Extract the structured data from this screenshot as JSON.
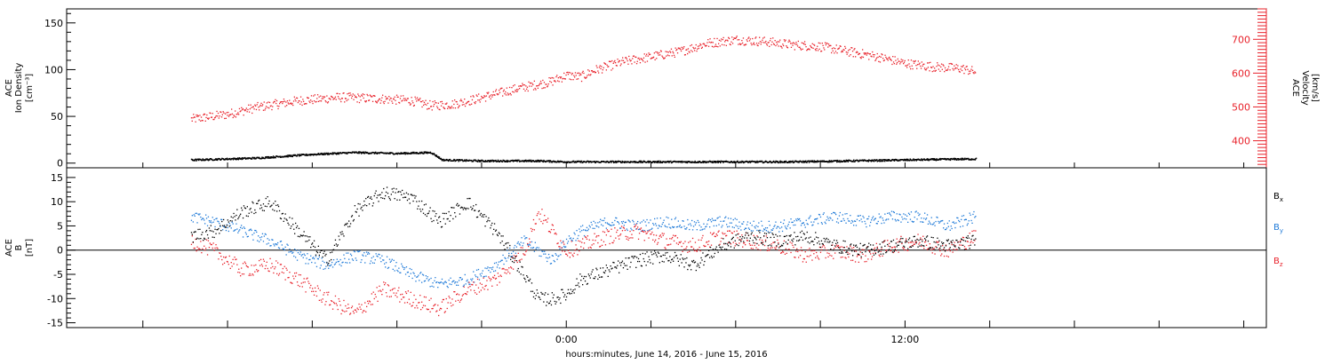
{
  "chart_data": [
    {
      "type": "scatter",
      "panel": "top",
      "ylabel_left": [
        "ACE",
        "Ion Density",
        "[cm⁻³]"
      ],
      "ylabel_right": [
        "ACE",
        "Velocity",
        "[km/s]"
      ],
      "yticks_left": [
        0,
        50,
        100,
        150
      ],
      "ylim_left": [
        -5,
        165
      ],
      "yticks_right": [
        400,
        500,
        600,
        700
      ],
      "ylim_right": [
        320,
        790
      ],
      "series": [
        {
          "name": "Velocity",
          "axis": "right",
          "color": "#e8212a",
          "points": [
            [
              -13.3,
              465
            ],
            [
              -12.0,
              480
            ],
            [
              -11.0,
              500
            ],
            [
              -9.5,
              520
            ],
            [
              -8.0,
              530
            ],
            [
              -6.5,
              525
            ],
            [
              -5.5,
              520
            ],
            [
              -4.8,
              505
            ],
            [
              -4.0,
              510
            ],
            [
              -3.2,
              525
            ],
            [
              -2.5,
              540
            ],
            [
              -1.8,
              555
            ],
            [
              -1.2,
              565
            ],
            [
              -0.6,
              575
            ],
            [
              0,
              595
            ],
            [
              0.5,
              590
            ],
            [
              1.0,
              610
            ],
            [
              2.0,
              635
            ],
            [
              3.0,
              650
            ],
            [
              4.0,
              665
            ],
            [
              5.0,
              690
            ],
            [
              6.0,
              700
            ],
            [
              7.0,
              695
            ],
            [
              8.0,
              685
            ],
            [
              9.0,
              680
            ],
            [
              10.0,
              665
            ],
            [
              11.0,
              650
            ],
            [
              12.0,
              630
            ],
            [
              13.0,
              620
            ],
            [
              14.0,
              615
            ],
            [
              14.5,
              605
            ]
          ]
        },
        {
          "name": "Ion Density",
          "axis": "left",
          "color": "#000000",
          "points": [
            [
              -13.3,
              4
            ],
            [
              -11.0,
              6
            ],
            [
              -9.0,
              10
            ],
            [
              -7.5,
              12
            ],
            [
              -6.0,
              11
            ],
            [
              -4.8,
              12
            ],
            [
              -4.4,
              4
            ],
            [
              -3.0,
              3
            ],
            [
              -1.0,
              3
            ],
            [
              0,
              2
            ],
            [
              3.0,
              2
            ],
            [
              6.0,
              2
            ],
            [
              8.0,
              2
            ],
            [
              10.0,
              3
            ],
            [
              12.0,
              4
            ],
            [
              14.0,
              5
            ],
            [
              14.5,
              5
            ]
          ]
        }
      ]
    },
    {
      "type": "scatter",
      "panel": "bottom",
      "ylabel_left": [
        "ACE",
        "B",
        "[nT]"
      ],
      "yticks_left": [
        -15,
        -10,
        -5,
        0,
        5,
        10,
        15
      ],
      "ylim_left": [
        -16,
        17
      ],
      "zero_line": true,
      "legend_position": "right",
      "series": [
        {
          "name": "Bx",
          "label_main": "B",
          "label_sub": "x",
          "color": "#000000",
          "points": [
            [
              -13.3,
              3
            ],
            [
              -12.5,
              4
            ],
            [
              -11.5,
              8
            ],
            [
              -10.5,
              10
            ],
            [
              -9.5,
              4
            ],
            [
              -8.5,
              -2
            ],
            [
              -7.5,
              8
            ],
            [
              -6.5,
              12
            ],
            [
              -5.5,
              11
            ],
            [
              -4.5,
              6
            ],
            [
              -3.5,
              10
            ],
            [
              -2.5,
              4
            ],
            [
              -1.5,
              -5
            ],
            [
              -1.0,
              -10
            ],
            [
              -0.5,
              -10
            ],
            [
              0,
              -9
            ],
            [
              0.5,
              -6
            ],
            [
              1.5,
              -4
            ],
            [
              2.5,
              -2
            ],
            [
              3.5,
              -1
            ],
            [
              4.5,
              -3
            ],
            [
              5.5,
              1
            ],
            [
              6.5,
              3
            ],
            [
              7.5,
              2
            ],
            [
              8.5,
              3
            ],
            [
              9.5,
              1
            ],
            [
              10.5,
              0
            ],
            [
              11.5,
              1
            ],
            [
              12.5,
              2
            ],
            [
              13.5,
              1
            ],
            [
              14.5,
              2
            ]
          ]
        },
        {
          "name": "By",
          "label_main": "B",
          "label_sub": "y",
          "color": "#1f7ad8",
          "points": [
            [
              -13.3,
              7
            ],
            [
              -12.5,
              6
            ],
            [
              -11.5,
              4
            ],
            [
              -10.5,
              2
            ],
            [
              -9.5,
              -1
            ],
            [
              -8.5,
              -3
            ],
            [
              -7.5,
              -1
            ],
            [
              -6.5,
              -2
            ],
            [
              -5.5,
              -5
            ],
            [
              -4.5,
              -7
            ],
            [
              -3.5,
              -6
            ],
            [
              -2.5,
              -3
            ],
            [
              -1.5,
              2
            ],
            [
              -0.5,
              -2
            ],
            [
              0,
              2
            ],
            [
              0.5,
              4
            ],
            [
              1.5,
              6
            ],
            [
              2.5,
              5
            ],
            [
              3.5,
              6
            ],
            [
              4.5,
              5
            ],
            [
              5.5,
              6
            ],
            [
              6.5,
              5
            ],
            [
              7.5,
              5
            ],
            [
              8.5,
              6
            ],
            [
              9.5,
              7
            ],
            [
              10.5,
              6
            ],
            [
              11.5,
              7
            ],
            [
              12.5,
              7
            ],
            [
              13.5,
              5
            ],
            [
              14.5,
              7
            ]
          ]
        },
        {
          "name": "Bz",
          "label_main": "B",
          "label_sub": "z",
          "color": "#e8212a",
          "points": [
            [
              -13.3,
              2
            ],
            [
              -12.5,
              0
            ],
            [
              -11.5,
              -4
            ],
            [
              -10.5,
              -3
            ],
            [
              -9.5,
              -6
            ],
            [
              -8.5,
              -10
            ],
            [
              -7.5,
              -13
            ],
            [
              -6.5,
              -8
            ],
            [
              -5.5,
              -10
            ],
            [
              -4.5,
              -12
            ],
            [
              -3.5,
              -8
            ],
            [
              -2.5,
              -6
            ],
            [
              -1.5,
              0
            ],
            [
              -1.0,
              8
            ],
            [
              -0.5,
              4
            ],
            [
              0,
              0
            ],
            [
              0.5,
              1
            ],
            [
              1.5,
              3
            ],
            [
              2.5,
              4
            ],
            [
              3.5,
              2
            ],
            [
              4.5,
              1
            ],
            [
              5.5,
              3
            ],
            [
              6.5,
              2
            ],
            [
              7.5,
              1
            ],
            [
              8.5,
              -1
            ],
            [
              9.5,
              0
            ],
            [
              10.5,
              -1
            ],
            [
              11.5,
              1
            ],
            [
              12.5,
              2
            ],
            [
              13.5,
              0
            ],
            [
              14.5,
              3
            ]
          ]
        }
      ]
    }
  ],
  "x_axis": {
    "xlim": [
      -17.7,
      24.8
    ],
    "tick_labels": [
      {
        "t": 0,
        "label": "0:00"
      },
      {
        "t": 12,
        "label": "12:00"
      }
    ],
    "xlabel": "hours:minutes, June 14, 2016 - June 15, 2016"
  }
}
